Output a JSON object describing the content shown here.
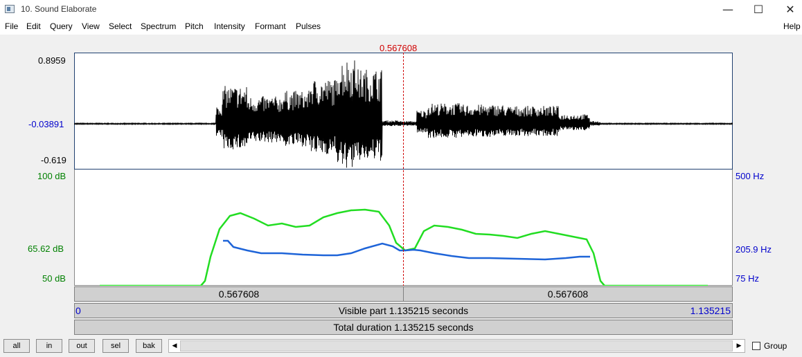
{
  "window": {
    "title": "10. Sound Elaborate",
    "minimize_glyph": "—",
    "maximize_glyph": "☐",
    "close_glyph": "✕"
  },
  "menu": {
    "file": "File",
    "edit": "Edit",
    "query": "Query",
    "view": "View",
    "select": "Select",
    "spectrum": "Spectrum",
    "pitch": "Pitch",
    "intensity": "Intensity",
    "formant": "Formant",
    "pulses": "Pulses",
    "help": "Help"
  },
  "cursor": {
    "time": "0.567608"
  },
  "waveform": {
    "max": "0.8959",
    "mid": "-0.03891",
    "min": "-0.619"
  },
  "intensity_axis": {
    "top": "100 dB",
    "mid": "65.62 dB",
    "bottom": "50 dB",
    "color": "#008000",
    "curve_color": "#22dd22"
  },
  "pitch_axis": {
    "top": "500 Hz",
    "mid": "205.9 Hz",
    "bottom": "75 Hz",
    "color": "#0000cc",
    "curve_color": "#1e64d8"
  },
  "cursor_color": "#d00000",
  "time_bar": {
    "left_segment": "0.567608",
    "right_segment": "0.567608"
  },
  "visible_bar": {
    "start": "0",
    "label": "Visible part 1.135215 seconds",
    "end": "1.135215"
  },
  "total_bar": {
    "label": "Total duration 1.135215 seconds"
  },
  "controls": {
    "all": "all",
    "in": "in",
    "out": "out",
    "sel": "sel",
    "bak": "bak",
    "scroll_left": "◀",
    "scroll_right": "▶",
    "group": "Group"
  }
}
